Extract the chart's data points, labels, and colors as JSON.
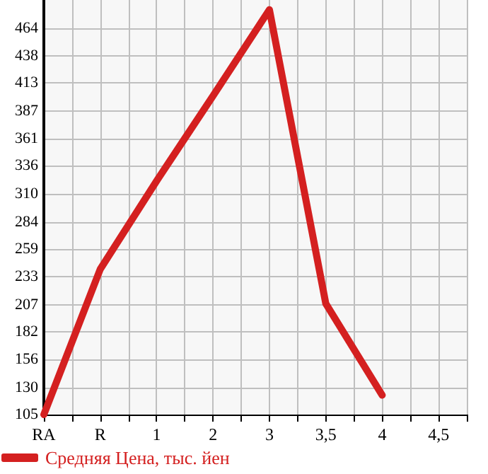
{
  "chart_data": {
    "type": "line",
    "categories": [
      "RA",
      "R",
      "1",
      "2",
      "3",
      "3,5",
      "4",
      "4,5"
    ],
    "series": [
      {
        "name": "Средняя Цена, тыс. йен",
        "color": "#d42020",
        "values": [
          105,
          240,
          322,
          401,
          481,
          208,
          123,
          null
        ]
      }
    ],
    "ylim": [
      105,
      490
    ],
    "yticks": [
      105,
      130,
      156,
      182,
      207,
      233,
      259,
      284,
      310,
      336,
      361,
      387,
      413,
      438,
      464
    ],
    "grid": true,
    "legend": "bottom left",
    "marker": "none",
    "line_style": "solid"
  }
}
